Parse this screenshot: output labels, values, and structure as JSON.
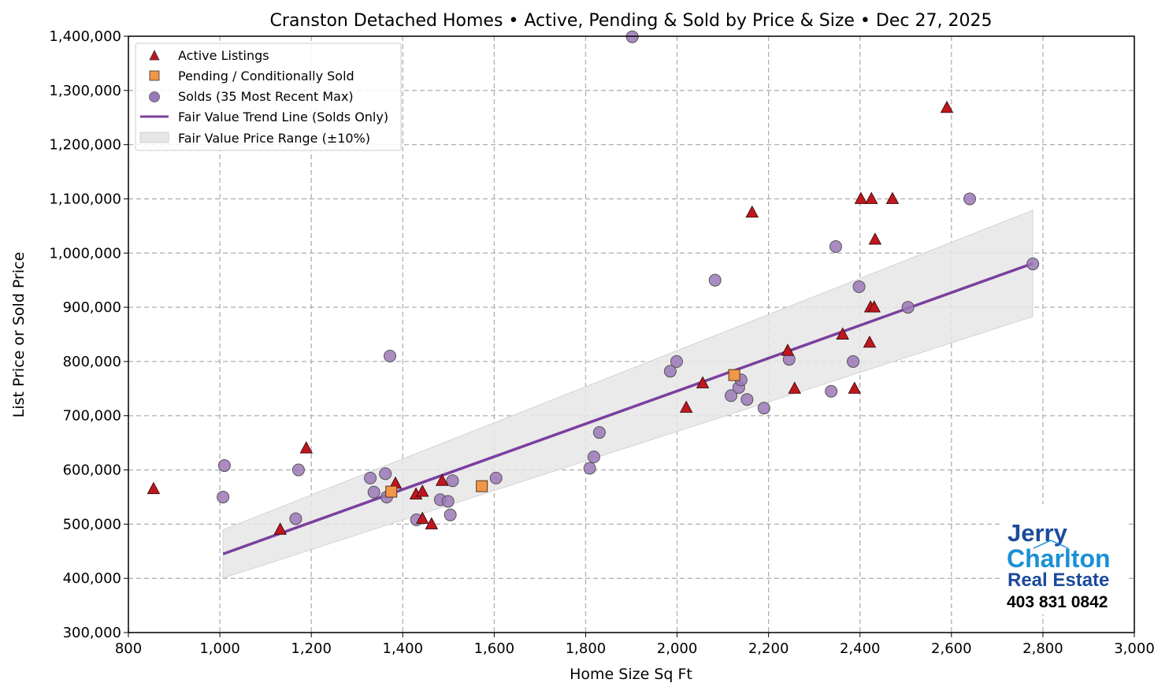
{
  "chart_data": {
    "type": "scatter",
    "title": "Cranston Detached Homes • Active, Pending & Sold by Price & Size • Dec 27, 2025",
    "xlabel": "Home Size Sq Ft",
    "ylabel": "List Price or Sold Price",
    "xlim": [
      800,
      3000
    ],
    "ylim": [
      300000,
      1400000
    ],
    "grid": true,
    "legend_position": "top-left",
    "x_ticks": [
      "800",
      "1,000",
      "1,200",
      "1,400",
      "1,600",
      "1,800",
      "2,000",
      "2,200",
      "2,400",
      "2,600",
      "2,800",
      "3,000"
    ],
    "y_ticks": [
      "300,000",
      "400,000",
      "500,000",
      "600,000",
      "700,000",
      "800,000",
      "900,000",
      "1,000,000",
      "1,100,000",
      "1,200,000",
      "1,300,000",
      "1,400,000"
    ],
    "series": [
      {
        "name": "Active Listings",
        "marker": "triangle",
        "color": "#c0161f",
        "points": [
          [
            855,
            565000
          ],
          [
            1132,
            490000
          ],
          [
            1189,
            640000
          ],
          [
            1384,
            575000
          ],
          [
            1429,
            555000
          ],
          [
            1443,
            560000
          ],
          [
            1443,
            510000
          ],
          [
            1463,
            500000
          ],
          [
            1486,
            580000
          ],
          [
            2020,
            715000
          ],
          [
            2056,
            760000
          ],
          [
            2164,
            1075000
          ],
          [
            2242,
            820000
          ],
          [
            2257,
            750000
          ],
          [
            2362,
            850000
          ],
          [
            2388,
            750000
          ],
          [
            2421,
            835000
          ],
          [
            2402,
            1100000
          ],
          [
            2425,
            1100000
          ],
          [
            2471,
            1100000
          ],
          [
            2433,
            1025000
          ],
          [
            2423,
            900000
          ],
          [
            2431,
            900000
          ],
          [
            2590,
            1268000
          ]
        ]
      },
      {
        "name": "Pending / Conditionally Sold",
        "marker": "square",
        "color": "#f0974a",
        "points": [
          [
            1375,
            560000
          ],
          [
            1573,
            570000
          ],
          [
            2125,
            775000
          ]
        ]
      },
      {
        "name": "Solds (35 Most Recent Max)",
        "marker": "circle",
        "color": "#9b78b8",
        "points": [
          [
            1902,
            1399000
          ],
          [
            1372,
            810000
          ],
          [
            1010,
            608000
          ],
          [
            1007,
            550000
          ],
          [
            1172,
            600000
          ],
          [
            1166,
            510000
          ],
          [
            1329,
            585000
          ],
          [
            1362,
            593000
          ],
          [
            1337,
            559000
          ],
          [
            1365,
            550000
          ],
          [
            1430,
            508000
          ],
          [
            1482,
            545000
          ],
          [
            1499,
            542000
          ],
          [
            1509,
            580000
          ],
          [
            1504,
            517000
          ],
          [
            1604,
            585000
          ],
          [
            1809,
            603000
          ],
          [
            1818,
            624000
          ],
          [
            1830,
            669000
          ],
          [
            1985,
            782000
          ],
          [
            1999,
            800000
          ],
          [
            2083,
            950000
          ],
          [
            2118,
            737000
          ],
          [
            2135,
            752000
          ],
          [
            2140,
            766000
          ],
          [
            2153,
            730000
          ],
          [
            2190,
            714000
          ],
          [
            2245,
            804000
          ],
          [
            2337,
            745000
          ],
          [
            2347,
            1012000
          ],
          [
            2385,
            800000
          ],
          [
            2398,
            938000
          ],
          [
            2505,
            900000
          ],
          [
            2640,
            1100000
          ],
          [
            2778,
            980000
          ]
        ]
      },
      {
        "name": "Fair Value Trend Line (Solds Only)",
        "type": "line",
        "color": "#7b3f9e",
        "points": [
          [
            1007,
            445000
          ],
          [
            2778,
            981000
          ]
        ]
      },
      {
        "name": "Fair Value Price Range (±10%)",
        "type": "band",
        "color": "#e6e6e6",
        "band_pct": 10
      }
    ]
  },
  "logo": {
    "line1": "Jerry",
    "line2": "Charlton",
    "line3": "Real Estate",
    "phone": "403 831 0842",
    "color_dark": "#1b4a9b",
    "color_light": "#1a90d4"
  }
}
